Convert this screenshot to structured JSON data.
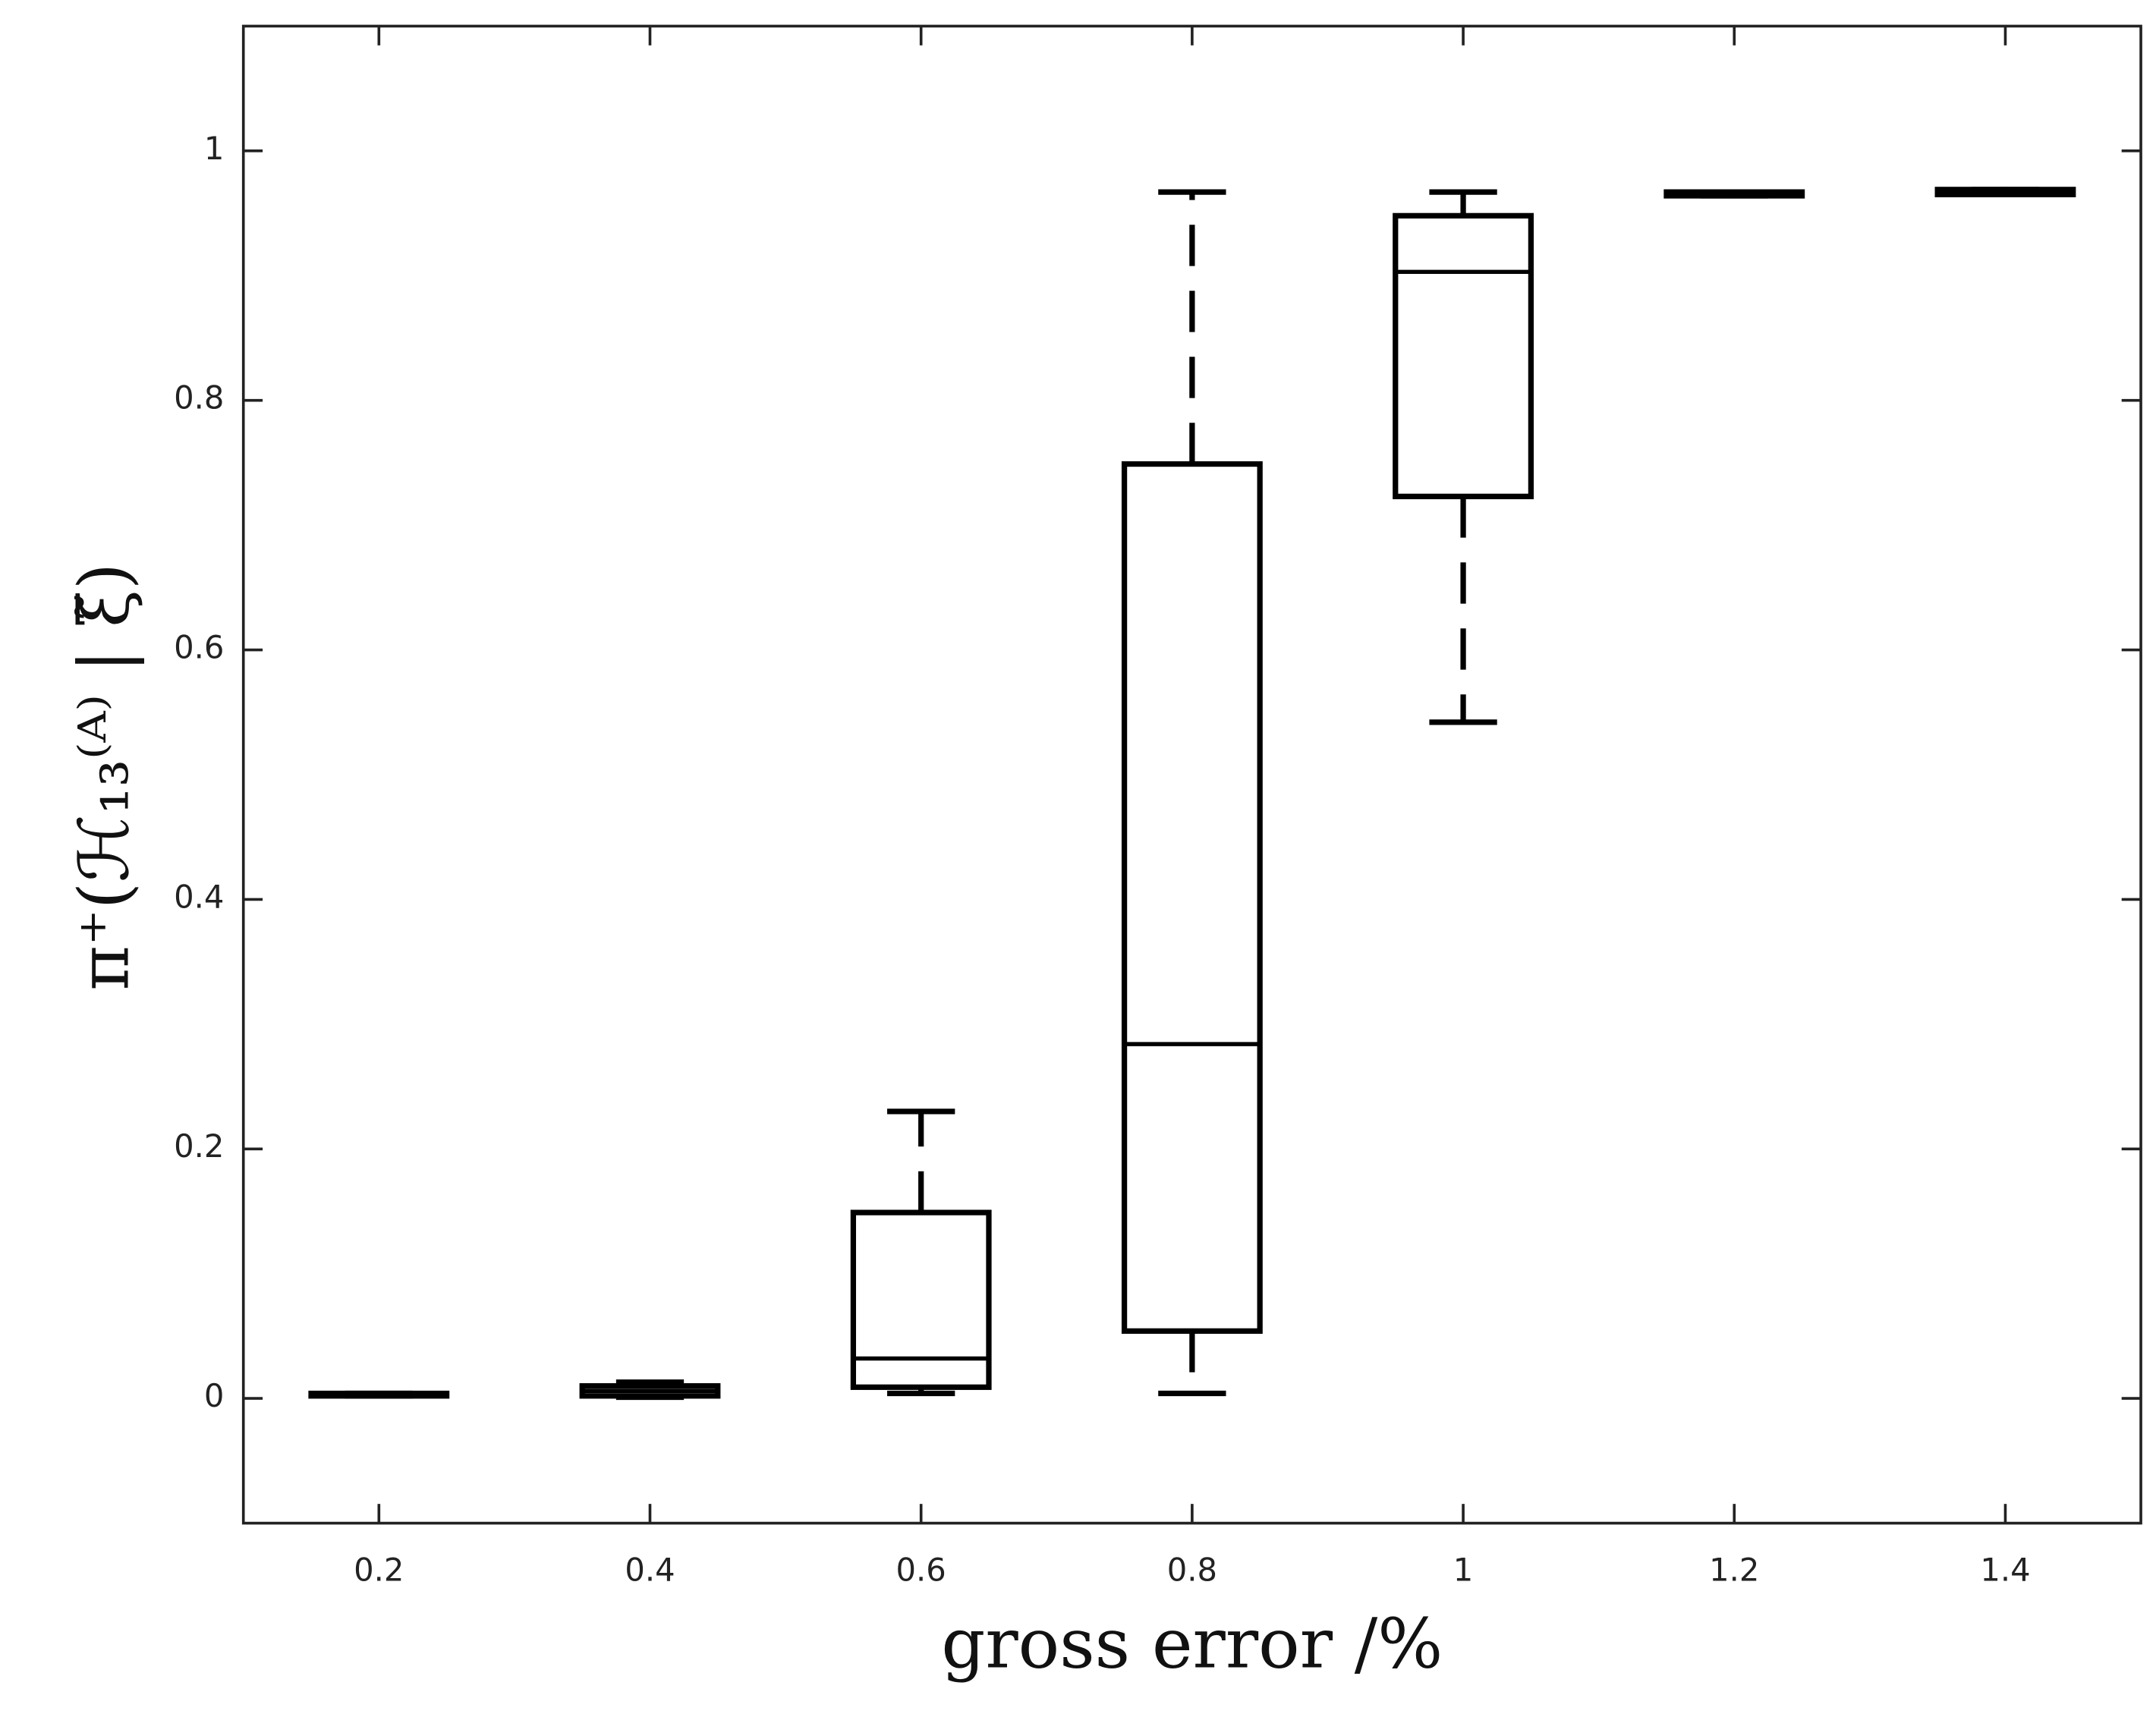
{
  "chart_data": {
    "type": "box",
    "xlabel": "gross error /%",
    "ylabel": "π⁺(ℋ₁₃⁽ᴬ⁾ | ξ̃)",
    "x": [
      0.2,
      0.4,
      0.6,
      0.8,
      1,
      1.2,
      1.4
    ],
    "boxes": [
      {
        "min": 0.002,
        "q1": 0.002,
        "median": 0.003,
        "q3": 0.004,
        "max": 0.004
      },
      {
        "min": 0.001,
        "q1": 0.002,
        "median": 0.006,
        "q3": 0.01,
        "max": 0.013
      },
      {
        "min": 0.004,
        "q1": 0.009,
        "median": 0.032,
        "q3": 0.149,
        "max": 0.23
      },
      {
        "min": 0.004,
        "q1": 0.054,
        "median": 0.284,
        "q3": 0.749,
        "max": 0.967
      },
      {
        "min": 0.542,
        "q1": 0.723,
        "median": 0.903,
        "q3": 0.948,
        "max": 0.967
      },
      {
        "min": 0.964,
        "q1": 0.964,
        "median": 0.966,
        "q3": 0.967,
        "max": 0.967
      },
      {
        "min": 0.965,
        "q1": 0.965,
        "median": 0.968,
        "q3": 0.969,
        "max": 0.969
      }
    ],
    "color": "#000000",
    "xlim": [
      0.1,
      1.5
    ],
    "ylim": [
      -0.1,
      1.1
    ],
    "xticks": [
      0.2,
      0.4,
      0.6,
      0.8,
      1,
      1.2,
      1.4
    ],
    "yticks": [
      0,
      0.2,
      0.4,
      0.6,
      0.8,
      1
    ]
  }
}
